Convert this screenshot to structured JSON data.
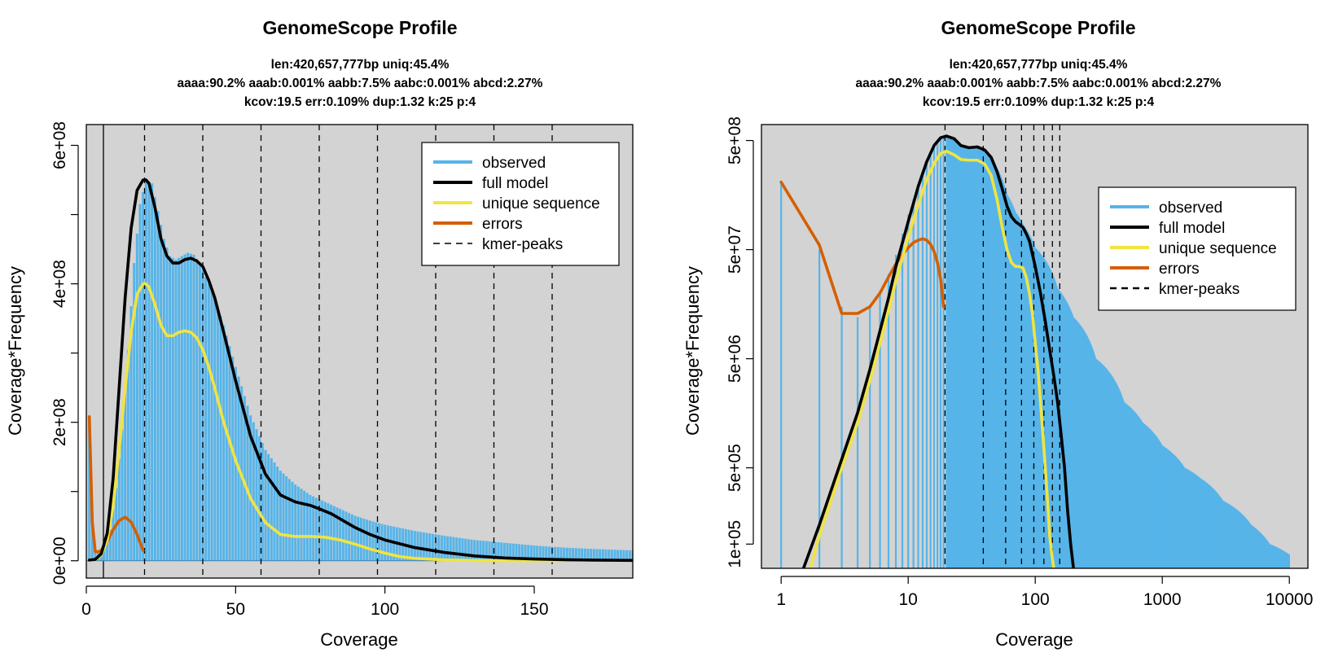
{
  "chart_data": [
    {
      "type": "line",
      "title": "GenomeScope Profile",
      "subtitle_lines": [
        "len:420,657,777bp uniq:45.4%",
        "aaaa:90.2% aaab:0.001% aabb:7.5% aabc:0.001% abcd:2.27%",
        "kcov:19.5 err:0.109%  dup:1.32  k:25 p:4"
      ],
      "xlabel": "Coverage",
      "ylabel": "Coverage*Frequency",
      "x_scale": "linear",
      "y_scale": "linear",
      "xlim": [
        0,
        183
      ],
      "ylim": [
        -25000000.0,
        630000000.0
      ],
      "x_ticks": [
        {
          "v": 0,
          "label": "0"
        },
        {
          "v": 50,
          "label": "50"
        },
        {
          "v": 100,
          "label": "100"
        },
        {
          "v": 150,
          "label": "150"
        }
      ],
      "y_ticks": [
        {
          "v": 0,
          "label": "0e+00"
        },
        {
          "v": 100000000,
          "label": ""
        },
        {
          "v": 200000000,
          "label": "2e+08"
        },
        {
          "v": 300000000,
          "label": ""
        },
        {
          "v": 400000000,
          "label": "4e+08"
        },
        {
          "v": 500000000,
          "label": ""
        },
        {
          "v": 600000000,
          "label": "6e+08"
        }
      ],
      "grid": false,
      "background": "#d3d3d3",
      "legend_position": "top-right",
      "kmer_peaks": [
        19.5,
        39,
        58.5,
        78,
        97.5,
        117,
        136.5,
        156
      ],
      "observed": {
        "name": "observed",
        "color": "#56b4e9",
        "x": [
          1,
          2,
          3,
          4,
          6,
          8,
          10,
          12,
          14,
          16,
          18,
          20,
          22,
          24,
          26,
          28,
          30,
          32,
          34,
          36,
          38,
          40,
          43,
          46,
          50,
          55,
          60,
          65,
          70,
          75,
          80,
          85,
          90,
          95,
          100,
          110,
          120,
          130,
          140,
          150,
          160,
          170,
          183
        ],
        "y": [
          205000000.0,
          50000000.0,
          15000000.0,
          12000000.0,
          20000000.0,
          45000000.0,
          105000000.0,
          190000000.0,
          305000000.0,
          430000000.0,
          515000000.0,
          550000000.0,
          545000000.0,
          505000000.0,
          465000000.0,
          440000000.0,
          435000000.0,
          440000000.0,
          445000000.0,
          442000000.0,
          430000000.0,
          410000000.0,
          380000000.0,
          340000000.0,
          280000000.0,
          210000000.0,
          160000000.0,
          130000000.0,
          110000000.0,
          95000000.0,
          85000000.0,
          75000000.0,
          65000000.0,
          58000000.0,
          52000000.0,
          43000000.0,
          36000000.0,
          30000000.0,
          26000000.0,
          22000000.0,
          19000000.0,
          17000000.0,
          15000000.0
        ]
      },
      "series": [
        {
          "name": "full model",
          "color": "#000000",
          "x": [
            1,
            3,
            5,
            7,
            9,
            11,
            13,
            15,
            17,
            19,
            20,
            21,
            23,
            25,
            27,
            29,
            31,
            33,
            35,
            37,
            39,
            41,
            43,
            46,
            50,
            55,
            60,
            65,
            70,
            75,
            78,
            82,
            86,
            90,
            95,
            100,
            110,
            120,
            130,
            140,
            150,
            160,
            170,
            183
          ],
          "y": [
            1000000.0,
            2000000.0,
            10000000.0,
            40000000.0,
            120000000.0,
            250000000.0,
            380000000.0,
            480000000.0,
            535000000.0,
            550000000.0,
            550000000.0,
            545000000.0,
            510000000.0,
            465000000.0,
            440000000.0,
            430000000.0,
            430000000.0,
            435000000.0,
            437000000.0,
            433000000.0,
            425000000.0,
            405000000.0,
            380000000.0,
            330000000.0,
            260000000.0,
            180000000.0,
            125000000.0,
            95000000.0,
            85000000.0,
            80000000.0,
            75000000.0,
            68000000.0,
            58000000.0,
            48000000.0,
            38000000.0,
            30000000.0,
            19000000.0,
            12000000.0,
            7000000.0,
            4000000.0,
            2500000.0,
            1500000.0,
            1000000.0,
            500000.0
          ]
        },
        {
          "name": "unique sequence",
          "color": "#f0e442",
          "x": [
            1,
            3,
            5,
            7,
            9,
            11,
            13,
            15,
            17,
            19,
            20,
            21,
            23,
            25,
            27,
            29,
            31,
            33,
            35,
            37,
            39,
            41,
            43,
            46,
            50,
            55,
            60,
            65,
            70,
            75,
            80,
            85,
            90,
            95,
            100,
            105,
            110,
            120,
            130,
            140,
            150,
            160
          ],
          "y": [
            1000000.0,
            1500000.0,
            8000000.0,
            30000000.0,
            80000000.0,
            160000000.0,
            250000000.0,
            330000000.0,
            385000000.0,
            400000000.0,
            400000000.0,
            395000000.0,
            370000000.0,
            340000000.0,
            325000000.0,
            325000000.0,
            330000000.0,
            332000000.0,
            330000000.0,
            322000000.0,
            305000000.0,
            280000000.0,
            250000000.0,
            200000000.0,
            145000000.0,
            90000000.0,
            55000000.0,
            38000000.0,
            35000000.0,
            35000000.0,
            34000000.0,
            30000000.0,
            24000000.0,
            17000000.0,
            11000000.0,
            6000000.0,
            3500000.0,
            1200000.0,
            400000.0,
            100000.0,
            0,
            0
          ]
        },
        {
          "name": "errors",
          "color": "#d55e00",
          "x": [
            1,
            2,
            3,
            4,
            5,
            7,
            9,
            11,
            13,
            15,
            17,
            19
          ],
          "y": [
            208000000.0,
            55000000.0,
            13000000.0,
            13000000.0,
            15000000.0,
            28000000.0,
            45000000.0,
            58000000.0,
            63000000.0,
            56000000.0,
            38000000.0,
            15000000.0
          ]
        }
      ],
      "legend": {
        "observed": "observed",
        "full_model": "full model",
        "unique": "unique sequence",
        "errors": "errors",
        "peaks": "kmer-peaks"
      }
    },
    {
      "type": "line",
      "title": "GenomeScope Profile",
      "subtitle_lines": [
        "len:420,657,777bp uniq:45.4%",
        "aaaa:90.2% aaab:0.001% aabb:7.5% aabc:0.001% abcd:2.27%",
        "kcov:19.5 err:0.109%  dup:1.32  k:25 p:4"
      ],
      "xlabel": "Coverage",
      "ylabel": "Coverage*Frequency",
      "x_scale": "log",
      "y_scale": "log",
      "xlim": [
        0.7,
        14000
      ],
      "ylim": [
        60000.0,
        700000000.0
      ],
      "x_ticks": [
        {
          "v": 1,
          "label": "1"
        },
        {
          "v": 10,
          "label": "10"
        },
        {
          "v": 100,
          "label": "100"
        },
        {
          "v": 1000,
          "label": "1000"
        },
        {
          "v": 10000,
          "label": "10000"
        }
      ],
      "y_ticks": [
        {
          "v": 100000,
          "label": "1e+05"
        },
        {
          "v": 500000,
          "label": "5e+05"
        },
        {
          "v": 5000000,
          "label": "5e+06"
        },
        {
          "v": 50000000,
          "label": "5e+07"
        },
        {
          "v": 500000000,
          "label": "5e+08"
        }
      ],
      "grid": false,
      "background": "#d3d3d3",
      "legend_position": "top-right",
      "kmer_peaks": [
        19.5,
        39,
        58.5,
        78,
        97.5,
        117,
        136.5,
        156
      ],
      "observed": {
        "name": "observed",
        "color": "#56b4e9",
        "x": [
          1,
          2,
          3,
          4,
          5,
          6,
          7,
          8,
          9,
          10,
          11,
          12,
          13,
          14,
          15,
          16,
          17,
          18,
          19,
          20,
          22,
          25,
          30,
          35,
          40,
          45,
          50,
          60,
          70,
          80,
          100,
          150,
          200,
          300,
          500,
          700,
          1000,
          1500,
          2000,
          3000,
          5000,
          7000,
          10000
        ],
        "y": [
          205000000.0,
          50000000.0,
          15000000.0,
          12000000.0,
          15000000.0,
          20000000.0,
          30000000.0,
          45000000.0,
          70000000.0,
          105000000.0,
          145000000.0,
          190000000.0,
          245000000.0,
          305000000.0,
          365000000.0,
          430000000.0,
          480000000.0,
          515000000.0,
          540000000.0,
          550000000.0,
          545000000.0,
          465000000.0,
          435000000.0,
          442000000.0,
          410000000.0,
          360000000.0,
          280000000.0,
          160000000.0,
          110000000.0,
          85000000.0,
          52000000.0,
          22000000.0,
          12000000.0,
          5000000.0,
          2000000.0,
          1300000.0,
          800000.0,
          500000.0,
          400000.0,
          250000.0,
          150000.0,
          100000.0,
          80000.0
        ]
      },
      "series": [
        {
          "name": "full model",
          "color": "#000000",
          "x": [
            1.5,
            2,
            3,
            4,
            5,
            6,
            7,
            8,
            10,
            12,
            14,
            16,
            18,
            20,
            23,
            26,
            30,
            35,
            40,
            45,
            50,
            55,
            60,
            65,
            70,
            75,
            80,
            85,
            90,
            100,
            110,
            120,
            130,
            140,
            150,
            160,
            170,
            180,
            190,
            200
          ],
          "y": [
            60000.0,
            150000.0,
            600000.0,
            1600000.0,
            4000000.0,
            9000000.0,
            18000000.0,
            35000000.0,
            90000000.0,
            190000000.0,
            320000000.0,
            450000000.0,
            530000000.0,
            550000000.0,
            520000000.0,
            450000000.0,
            430000000.0,
            437000000.0,
            410000000.0,
            350000000.0,
            260000000.0,
            180000000.0,
            125000000.0,
            100000000.0,
            90000000.0,
            85000000.0,
            80000000.0,
            70000000.0,
            60000000.0,
            35000000.0,
            20000000.0,
            11000000.0,
            6000000.0,
            3500000.0,
            2000000.0,
            1000000.0,
            500000.0,
            200000.0,
            100000.0,
            60000.0
          ]
        },
        {
          "name": "unique sequence",
          "color": "#f0e442",
          "x": [
            1.7,
            2,
            3,
            4,
            5,
            6,
            7,
            8,
            10,
            12,
            14,
            16,
            18,
            20,
            23,
            26,
            30,
            35,
            40,
            45,
            50,
            55,
            60,
            65,
            70,
            75,
            80,
            85,
            90,
            95,
            100,
            105,
            110,
            115,
            120,
            125,
            130,
            135,
            140
          ],
          "y": [
            60000.0,
            120000.0,
            500000.0,
            1300000.0,
            3200000.0,
            7000000.0,
            14000000.0,
            26000000.0,
            65000000.0,
            130000000.0,
            220000000.0,
            310000000.0,
            380000000.0,
            400000000.0,
            370000000.0,
            335000000.0,
            330000000.0,
            330000000.0,
            305000000.0,
            240000000.0,
            145000000.0,
            80000000.0,
            50000000.0,
            38000000.0,
            35000000.0,
            35000000.0,
            34000000.0,
            28000000.0,
            20000000.0,
            13000000.0,
            7000000.0,
            4000000.0,
            2000000.0,
            1000000.0,
            500000.0,
            250000.0,
            120000.0,
            80000.0,
            60000.0
          ]
        },
        {
          "name": "errors",
          "color": "#d55e00",
          "x": [
            1,
            2,
            3,
            4,
            5,
            6,
            7,
            8,
            9,
            10,
            11,
            12,
            13,
            14,
            15,
            16,
            17,
            18,
            19
          ],
          "y": [
            208000000.0,
            55000000.0,
            13000000.0,
            13000000.0,
            15000000.0,
            20000000.0,
            28000000.0,
            37000000.0,
            45000000.0,
            52000000.0,
            58000000.0,
            61000000.0,
            63000000.0,
            61000000.0,
            56000000.0,
            48000000.0,
            38000000.0,
            27000000.0,
            15000000.0
          ]
        }
      ],
      "legend": {
        "observed": "observed",
        "full_model": "full model",
        "unique": "unique sequence",
        "errors": "errors",
        "peaks": "kmer-peaks"
      }
    }
  ]
}
